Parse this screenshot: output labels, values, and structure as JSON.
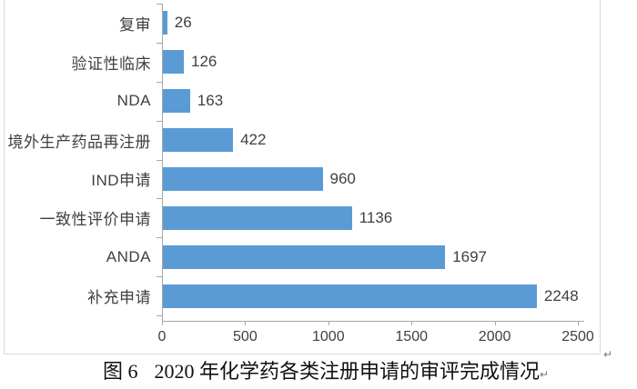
{
  "page": {
    "background": "#ffffff"
  },
  "figure": {
    "caption_prefix": "图 6",
    "caption_text": "2020 年化学药各类注册申请的审评完成情况",
    "paragraph_mark": "↵"
  },
  "chart_data": {
    "type": "bar",
    "orientation": "horizontal",
    "title": "",
    "categories": [
      "复审",
      "验证性临床",
      "NDA",
      "境外生产药品再注册",
      "IND申请",
      "一致性评价申请",
      "ANDA",
      "补充申请"
    ],
    "values": [
      26,
      126,
      163,
      422,
      960,
      1136,
      1697,
      2248
    ],
    "value_labels": "outside-end",
    "xlabel": "",
    "ylabel": "",
    "xlim": [
      0,
      2500
    ],
    "x_ticks": [
      0,
      500,
      1000,
      1500,
      2000,
      2500
    ],
    "grid": false,
    "legend": "none",
    "colors": {
      "bar": "#5B9BD5",
      "axis": "#A6A6A6",
      "tick_label": "#404040",
      "category_label": "#3F3F3F",
      "value_label": "#404040",
      "frame_border": "#D9D9D9"
    }
  }
}
